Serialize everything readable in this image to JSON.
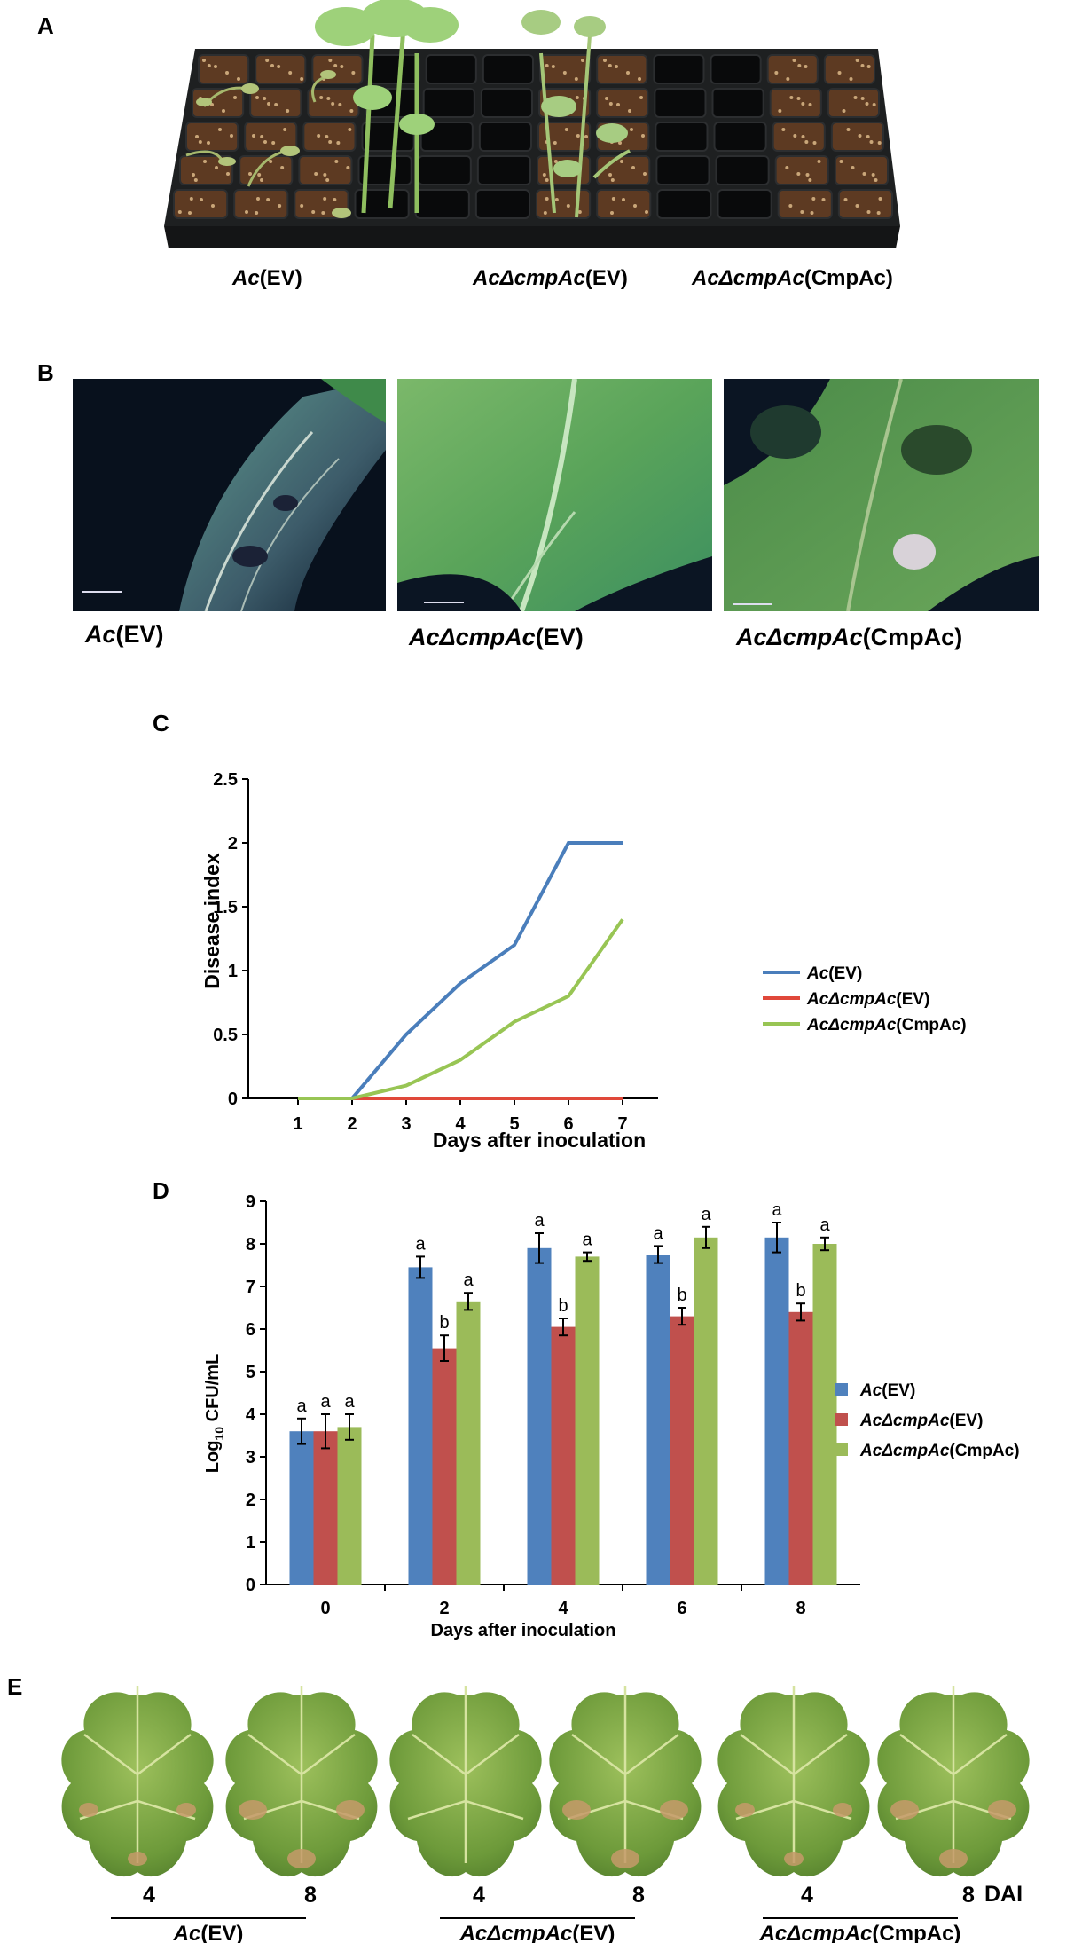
{
  "panels": {
    "A": {
      "letter": "A",
      "labels": [
        {
          "italic": "Ac",
          "plain": "(EV)"
        },
        {
          "italic": "AcΔcmpAc",
          "plain": "(EV)"
        },
        {
          "italic": "AcΔcmpAc",
          "plain": "(CmpAc)"
        }
      ]
    },
    "B": {
      "letter": "B",
      "labels": [
        {
          "italic": "Ac",
          "plain": "(EV)"
        },
        {
          "italic": "AcΔcmpAc",
          "plain": "(EV)"
        },
        {
          "italic": "AcΔcmpAc",
          "plain": "(CmpAc)"
        }
      ]
    },
    "C": {
      "letter": "C"
    },
    "D": {
      "letter": "D"
    },
    "E": {
      "letter": "E",
      "dai_label": "DAI",
      "groups": [
        {
          "days": [
            "4",
            "8"
          ],
          "italic": "Ac",
          "plain": "(EV)"
        },
        {
          "days": [
            "4",
            "8"
          ],
          "italic": "AcΔcmpAc",
          "plain": "(EV)"
        },
        {
          "days": [
            "4",
            "8"
          ],
          "italic": "AcΔcmpAc",
          "plain": "(CmpAc)"
        }
      ]
    }
  },
  "chart_data": [
    {
      "type": "line",
      "panel": "C",
      "xlabel": "Days after inoculation",
      "ylabel": "Disease index",
      "x": [
        1,
        2,
        3,
        4,
        5,
        6,
        7
      ],
      "xticks": [
        "1",
        "2",
        "3",
        "4",
        "5",
        "6",
        "7"
      ],
      "yticks": [
        "0",
        "0.5",
        "1",
        "1.5",
        "2",
        "2.5"
      ],
      "ylim": [
        0,
        2.5
      ],
      "grid": false,
      "legend": "right",
      "series": [
        {
          "name_italic": "Ac",
          "name_plain": "(EV)",
          "color": "#4a7ebb",
          "values": [
            0,
            0,
            0.5,
            0.9,
            1.2,
            2.0,
            2.0
          ]
        },
        {
          "name_italic": "AcΔcmpAc",
          "name_plain": "(EV)",
          "color": "#e0483a",
          "values": [
            0,
            0,
            0,
            0,
            0,
            0,
            0
          ]
        },
        {
          "name_italic": "AcΔcmpAc",
          "name_plain": "(CmpAc)",
          "color": "#98c554",
          "values": [
            0,
            0,
            0.1,
            0.3,
            0.6,
            0.8,
            1.4
          ]
        }
      ]
    },
    {
      "type": "bar",
      "panel": "D",
      "xlabel": "Days after inoculation",
      "ylabel_base": "Log",
      "ylabel_sub": "10",
      "ylabel_rest": " CFU/mL",
      "categories": [
        "0",
        "2",
        "4",
        "6",
        "8"
      ],
      "yticks": [
        "0",
        "1",
        "2",
        "3",
        "4",
        "5",
        "6",
        "7",
        "8",
        "9"
      ],
      "ylim": [
        0,
        9
      ],
      "grid": false,
      "legend": "right",
      "series": [
        {
          "name_italic": "Ac",
          "name_plain": "(EV)",
          "color": "#4f81bd",
          "values": [
            3.6,
            7.45,
            7.9,
            7.75,
            8.15
          ],
          "errors": [
            0.3,
            0.25,
            0.35,
            0.2,
            0.35
          ],
          "letters": [
            "a",
            "a",
            "a",
            "a",
            "a"
          ]
        },
        {
          "name_italic": "AcΔcmpAc",
          "name_plain": "(EV)",
          "color": "#c0504d",
          "values": [
            3.6,
            5.55,
            6.05,
            6.3,
            6.4
          ],
          "errors": [
            0.4,
            0.3,
            0.2,
            0.2,
            0.2
          ],
          "letters": [
            "a",
            "b",
            "b",
            "b",
            "b"
          ]
        },
        {
          "name_italic": "AcΔcmpAc",
          "name_plain": "(CmpAc)",
          "color": "#9bbb59",
          "values": [
            3.7,
            6.65,
            7.7,
            8.15,
            8.0
          ],
          "errors": [
            0.3,
            0.2,
            0.1,
            0.25,
            0.15
          ],
          "letters": [
            "a",
            "a",
            "a",
            "a",
            "a"
          ]
        }
      ]
    }
  ]
}
